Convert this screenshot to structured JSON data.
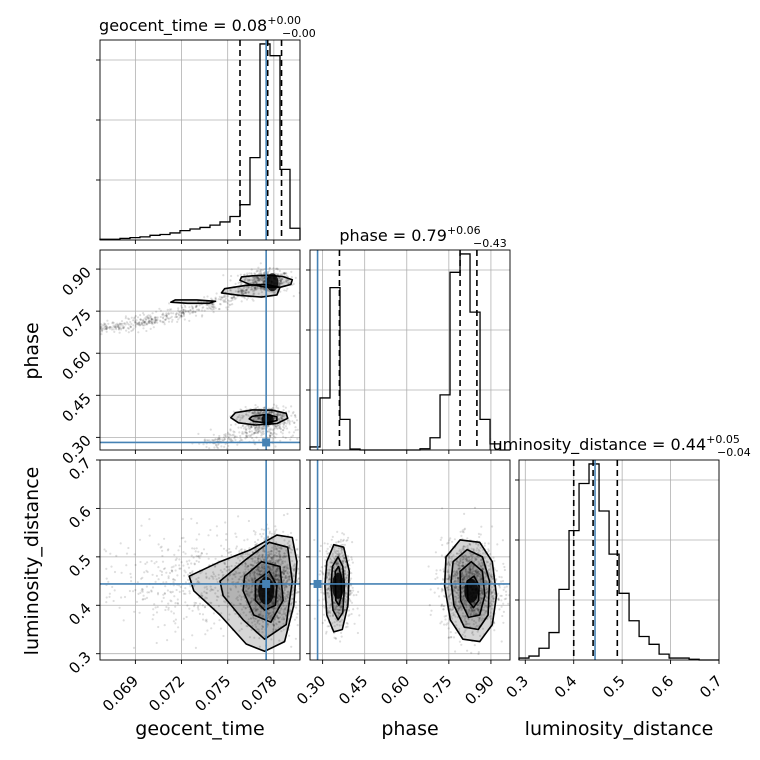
{
  "chart_data": {
    "type": "corner",
    "params": [
      "geocent_time",
      "phase",
      "luminosity_distance"
    ],
    "axis_labels": {
      "geocent_time": "geocent_time",
      "phase": "phase",
      "luminosity_distance": "luminosity_distance"
    },
    "titles": [
      {
        "param": "geocent_time",
        "base": "geocent_time = 0.08",
        "plus": "+0.00",
        "minus": "−0.00"
      },
      {
        "param": "phase",
        "base": "phase = 0.79",
        "plus": "+0.06",
        "minus": "−0.43"
      },
      {
        "param": "luminosity_distance",
        "base": "luminosity_distance = 0.44",
        "plus": "+0.05",
        "minus": "−0.04"
      }
    ],
    "ranges": {
      "geocent_time": [
        0.0667,
        0.0797
      ],
      "phase": [
        0.255,
        0.968
      ],
      "luminosity_distance": [
        0.287,
        0.7
      ]
    },
    "tick_labels": {
      "geocent_time": [
        "0.069",
        "0.072",
        "0.075",
        "0.078"
      ],
      "phase": [
        "0.30",
        "0.45",
        "0.60",
        "0.75",
        "0.90"
      ],
      "luminosity_distance": [
        "0.3",
        "0.4",
        "0.5",
        "0.6",
        "0.7"
      ]
    },
    "ticks": {
      "geocent_time": [
        0.069,
        0.072,
        0.075,
        0.078
      ],
      "phase": [
        0.3,
        0.45,
        0.6,
        0.75,
        0.9
      ],
      "luminosity_distance": [
        0.3,
        0.4,
        0.5,
        0.6,
        0.7
      ]
    },
    "truths": {
      "geocent_time": 0.0775,
      "phase": 0.282,
      "luminosity_distance": 0.444
    },
    "quantiles": {
      "geocent_time": [
        0.0758,
        0.0776,
        0.0785
      ],
      "phase": [
        0.36,
        0.79,
        0.85
      ],
      "luminosity_distance": [
        0.4,
        0.44,
        0.49
      ]
    },
    "histograms": {
      "geocent_time": {
        "edges": [
          0.0667,
          0.06735,
          0.068,
          0.06865,
          0.0693,
          0.06995,
          0.0706,
          0.07125,
          0.0719,
          0.07255,
          0.0732,
          0.07385,
          0.0745,
          0.07515,
          0.0758,
          0.07645,
          0.0771,
          0.07775,
          0.0784,
          0.07905,
          0.0797
        ],
        "counts": [
          0.4,
          0.4,
          0.8,
          1.2,
          1.6,
          2.4,
          2.8,
          3.6,
          4.8,
          5.6,
          6.4,
          7.6,
          9.2,
          12,
          18,
          42,
          100,
          94,
          36,
          6
        ]
      },
      "phase": {
        "edges": [
          0.255,
          0.2907,
          0.3263,
          0.362,
          0.3976,
          0.4333,
          0.469,
          0.5046,
          0.5403,
          0.5759,
          0.6116,
          0.6472,
          0.6829,
          0.7186,
          0.7542,
          0.7899,
          0.8255,
          0.8612,
          0.8968,
          0.9325,
          0.968
        ],
        "counts": [
          1,
          17,
          53,
          10,
          0.3,
          0,
          0,
          0,
          0,
          0,
          0,
          0.4,
          4,
          18,
          58,
          64,
          45,
          10,
          2,
          0
        ]
      },
      "luminosity_distance": {
        "edges": [
          0.287,
          0.3076,
          0.3283,
          0.349,
          0.3696,
          0.3903,
          0.411,
          0.4316,
          0.4523,
          0.473,
          0.4936,
          0.5143,
          0.535,
          0.5556,
          0.5763,
          0.597,
          0.6176,
          0.6383,
          0.659,
          0.6796,
          0.7
        ],
        "counts": [
          0.5,
          1,
          3,
          7,
          18,
          33,
          45,
          50,
          38,
          27,
          17,
          10,
          6,
          4,
          1.5,
          0.5,
          0.5,
          0.2,
          0,
          0
        ]
      }
    },
    "density": {
      "phase_vs_geocent_time": {
        "x_param": "geocent_time",
        "y_param": "phase",
        "contours": [
          [
            [
              0.0759,
              0.872
            ],
            [
              0.0766,
              0.876
            ],
            [
              0.0776,
              0.878
            ],
            [
              0.0786,
              0.873
            ],
            [
              0.0792,
              0.862
            ],
            [
              0.0791,
              0.845
            ],
            [
              0.0784,
              0.835
            ],
            [
              0.0774,
              0.836
            ],
            [
              0.0764,
              0.846
            ],
            [
              0.0758,
              0.86
            ]
          ],
          [
            [
              0.0748,
              0.83
            ],
            [
              0.0762,
              0.842
            ],
            [
              0.0775,
              0.845
            ],
            [
              0.0784,
              0.835
            ],
            [
              0.0782,
              0.808
            ],
            [
              0.0772,
              0.8
            ],
            [
              0.0758,
              0.806
            ],
            [
              0.0746,
              0.815
            ]
          ],
          [
            [
              0.0716,
              0.79
            ],
            [
              0.073,
              0.79
            ],
            [
              0.0742,
              0.785
            ],
            [
              0.0738,
              0.778
            ],
            [
              0.0724,
              0.778
            ],
            [
              0.0713,
              0.782
            ]
          ],
          [
            [
              0.0755,
              0.388
            ],
            [
              0.0766,
              0.398
            ],
            [
              0.0779,
              0.397
            ],
            [
              0.0788,
              0.386
            ],
            [
              0.0789,
              0.368
            ],
            [
              0.0782,
              0.349
            ],
            [
              0.0768,
              0.344
            ],
            [
              0.0757,
              0.352
            ],
            [
              0.0752,
              0.37
            ]
          ],
          [
            [
              0.0766,
              0.375
            ],
            [
              0.0775,
              0.382
            ],
            [
              0.0782,
              0.373
            ],
            [
              0.0782,
              0.36
            ],
            [
              0.0775,
              0.352
            ],
            [
              0.0767,
              0.357
            ],
            [
              0.0764,
              0.366
            ]
          ]
        ]
      },
      "luminosity_distance_vs_geocent_time": {
        "x_param": "geocent_time",
        "y_param": "luminosity_distance",
        "contours": [
          [
            [
              0.0725,
              0.46
            ],
            [
              0.0745,
              0.49
            ],
            [
              0.0765,
              0.515
            ],
            [
              0.0782,
              0.545
            ],
            [
              0.0792,
              0.54
            ],
            [
              0.0795,
              0.49
            ],
            [
              0.0793,
              0.4
            ],
            [
              0.0787,
              0.325
            ],
            [
              0.0774,
              0.305
            ],
            [
              0.0762,
              0.32
            ],
            [
              0.0745,
              0.38
            ],
            [
              0.0728,
              0.43
            ]
          ],
          [
            [
              0.0745,
              0.45
            ],
            [
              0.0762,
              0.495
            ],
            [
              0.0777,
              0.53
            ],
            [
              0.0789,
              0.52
            ],
            [
              0.0792,
              0.45
            ],
            [
              0.0788,
              0.36
            ],
            [
              0.0774,
              0.33
            ],
            [
              0.076,
              0.37
            ],
            [
              0.0747,
              0.42
            ]
          ],
          [
            [
              0.0761,
              0.46
            ],
            [
              0.0772,
              0.49
            ],
            [
              0.0784,
              0.48
            ],
            [
              0.0786,
              0.41
            ],
            [
              0.0778,
              0.365
            ],
            [
              0.0767,
              0.38
            ],
            [
              0.076,
              0.43
            ]
          ],
          [
            [
              0.0768,
              0.45
            ],
            [
              0.0777,
              0.47
            ],
            [
              0.0782,
              0.44
            ],
            [
              0.0781,
              0.4
            ],
            [
              0.0774,
              0.39
            ],
            [
              0.0768,
              0.41
            ]
          ]
        ]
      },
      "luminosity_distance_vs_phase": {
        "x_param": "phase",
        "y_param": "luminosity_distance",
        "contours": [
          [
            [
              0.315,
              0.49
            ],
            [
              0.34,
              0.525
            ],
            [
              0.375,
              0.52
            ],
            [
              0.395,
              0.47
            ],
            [
              0.39,
              0.4
            ],
            [
              0.37,
              0.35
            ],
            [
              0.34,
              0.345
            ],
            [
              0.315,
              0.38
            ],
            [
              0.308,
              0.44
            ]
          ],
          [
            [
              0.335,
              0.48
            ],
            [
              0.355,
              0.5
            ],
            [
              0.372,
              0.48
            ],
            [
              0.378,
              0.44
            ],
            [
              0.372,
              0.385
            ],
            [
              0.355,
              0.37
            ],
            [
              0.337,
              0.39
            ],
            [
              0.33,
              0.44
            ]
          ],
          [
            [
              0.345,
              0.47
            ],
            [
              0.357,
              0.48
            ],
            [
              0.366,
              0.46
            ],
            [
              0.367,
              0.42
            ],
            [
              0.358,
              0.4
            ],
            [
              0.347,
              0.41
            ]
          ],
          [
            [
              0.74,
              0.5
            ],
            [
              0.79,
              0.535
            ],
            [
              0.86,
              0.53
            ],
            [
              0.905,
              0.49
            ],
            [
              0.92,
              0.42
            ],
            [
              0.905,
              0.36
            ],
            [
              0.86,
              0.325
            ],
            [
              0.8,
              0.33
            ],
            [
              0.755,
              0.37
            ],
            [
              0.735,
              0.44
            ]
          ],
          [
            [
              0.765,
              0.49
            ],
            [
              0.815,
              0.515
            ],
            [
              0.87,
              0.5
            ],
            [
              0.895,
              0.45
            ],
            [
              0.89,
              0.38
            ],
            [
              0.855,
              0.35
            ],
            [
              0.805,
              0.355
            ],
            [
              0.768,
              0.4
            ],
            [
              0.758,
              0.45
            ]
          ],
          [
            [
              0.79,
              0.47
            ],
            [
              0.83,
              0.49
            ],
            [
              0.87,
              0.47
            ],
            [
              0.878,
              0.42
            ],
            [
              0.86,
              0.38
            ],
            [
              0.82,
              0.375
            ],
            [
              0.792,
              0.41
            ]
          ],
          [
            [
              0.815,
              0.45
            ],
            [
              0.84,
              0.46
            ],
            [
              0.858,
              0.44
            ],
            [
              0.856,
              0.41
            ],
            [
              0.838,
              0.395
            ],
            [
              0.818,
              0.41
            ]
          ]
        ]
      }
    }
  }
}
